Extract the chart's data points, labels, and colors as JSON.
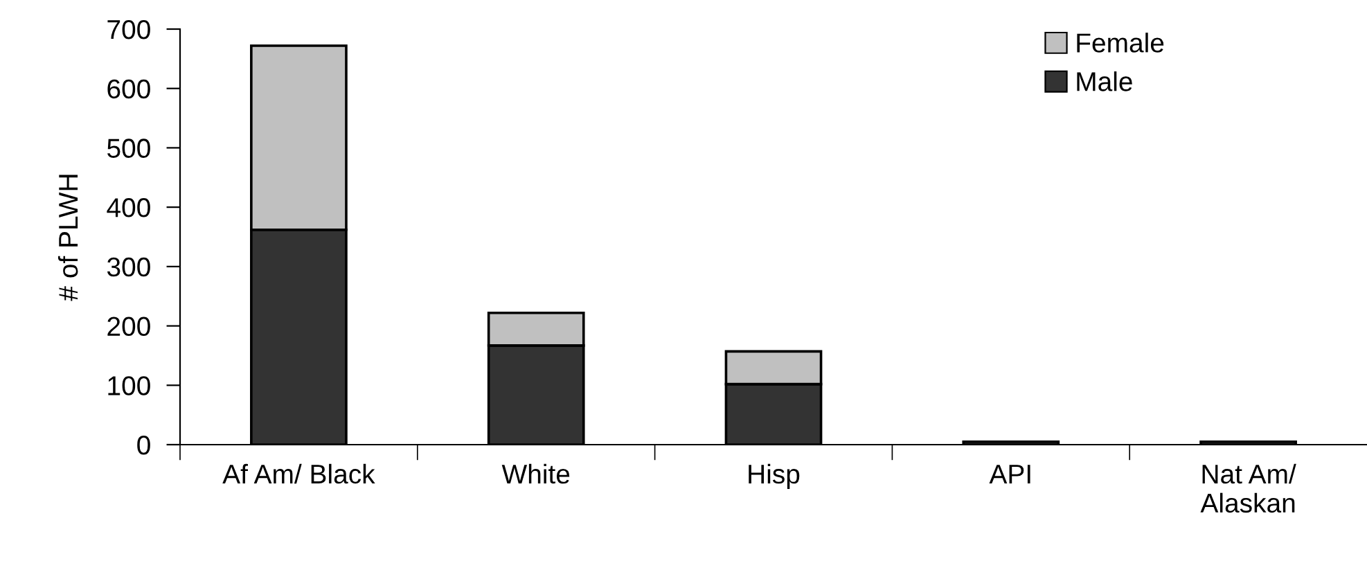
{
  "chart_data": {
    "type": "bar",
    "stacked": true,
    "ylabel": "# of PLWH",
    "categories": [
      "Af Am/ Black",
      "White",
      "Hisp",
      "API",
      "Nat Am/\nAlaskan"
    ],
    "series": [
      {
        "name": "Male",
        "color": "#333333",
        "values": [
          362,
          167,
          102,
          5,
          5
        ]
      },
      {
        "name": "Female",
        "color": "#c0c0c0",
        "values": [
          310,
          55,
          55,
          null,
          null
        ]
      }
    ],
    "ylim": [
      0,
      700
    ],
    "yticks": [
      0,
      100,
      200,
      300,
      400,
      500,
      600,
      700
    ],
    "grid": false,
    "legend": "top right"
  }
}
